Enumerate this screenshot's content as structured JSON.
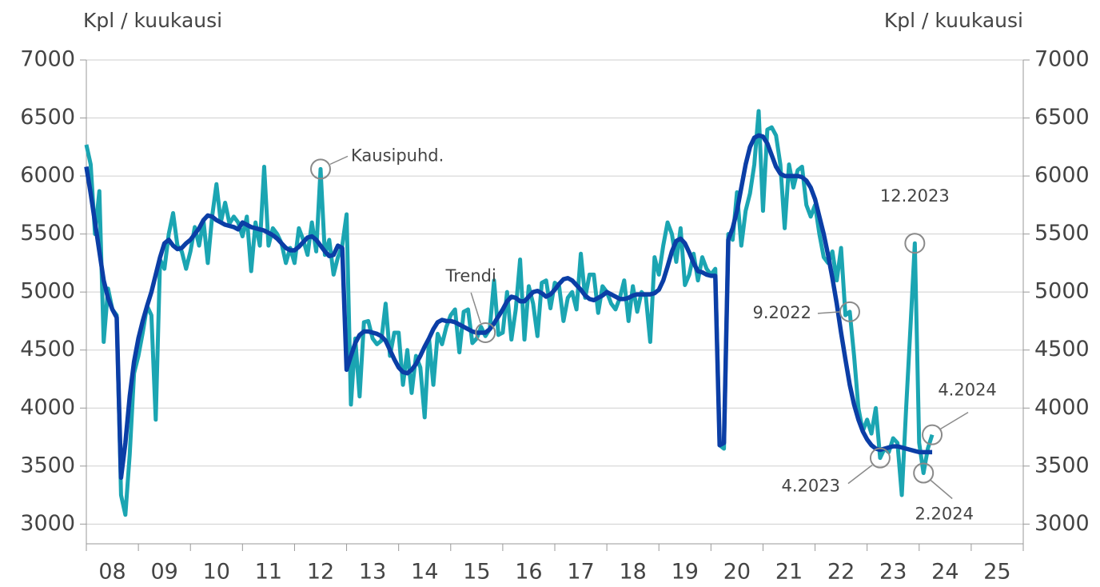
{
  "chart_data": {
    "type": "line",
    "ylabel": "Kpl / kuukausi",
    "y2label": "Kpl / kuukausi",
    "x": [
      0,
      1,
      2,
      3,
      4,
      5,
      6,
      7,
      8,
      9,
      10,
      11,
      12,
      13,
      14,
      15,
      16,
      17,
      18,
      19,
      20,
      21,
      22,
      23,
      24,
      25,
      26,
      27,
      28,
      29,
      30,
      31,
      32,
      33,
      34,
      35,
      36,
      37,
      38,
      39,
      40,
      41,
      42,
      43,
      44,
      45,
      46,
      47,
      48,
      49,
      50,
      51,
      52,
      53,
      54,
      55,
      56,
      57,
      58,
      59,
      60,
      61,
      62,
      63,
      64,
      65,
      66,
      67,
      68,
      69,
      70,
      71,
      72,
      73,
      74,
      75,
      76,
      77,
      78,
      79,
      80,
      81,
      82,
      83,
      84,
      85,
      86,
      87,
      88,
      89,
      90,
      91,
      92,
      93,
      94,
      95,
      96,
      97,
      98,
      99,
      100,
      101,
      102,
      103,
      104,
      105,
      106,
      107,
      108,
      109,
      110,
      111,
      112,
      113,
      114,
      115,
      116,
      117,
      118,
      119,
      120,
      121,
      122,
      123,
      124,
      125,
      126,
      127,
      128,
      129,
      130,
      131,
      132,
      133,
      134,
      135,
      136,
      137,
      138,
      139,
      140,
      141,
      142,
      143,
      144,
      145,
      146,
      147,
      148,
      149,
      150,
      151,
      152,
      153,
      154,
      155,
      156,
      157,
      158,
      159,
      160,
      161,
      162,
      163,
      164,
      165,
      166,
      167,
      168,
      169,
      170,
      171,
      172,
      173,
      174,
      175,
      176,
      177,
      178,
      179,
      180,
      181,
      182,
      183,
      184,
      185,
      186,
      187,
      188,
      189,
      190,
      191,
      192,
      193,
      194,
      195
    ],
    "series": [
      {
        "name": "Kausipuhd.",
        "color": "#1ba5b2",
        "values": [
          6270,
          6100,
          5500,
          5870,
          4570,
          5030,
          4850,
          4800,
          3250,
          3080,
          3600,
          4300,
          4450,
          4650,
          4880,
          4800,
          3900,
          5280,
          5200,
          5500,
          5680,
          5400,
          5350,
          5200,
          5350,
          5560,
          5400,
          5620,
          5250,
          5650,
          5930,
          5600,
          5770,
          5590,
          5650,
          5600,
          5480,
          5650,
          5180,
          5600,
          5400,
          6080,
          5400,
          5550,
          5500,
          5420,
          5250,
          5380,
          5250,
          5550,
          5450,
          5320,
          5600,
          5350,
          6060,
          5320,
          5450,
          5150,
          5300,
          5400,
          5670,
          4030,
          4600,
          4100,
          4740,
          4750,
          4600,
          4550,
          4580,
          4900,
          4450,
          4650,
          4650,
          4200,
          4500,
          4130,
          4450,
          4350,
          3920,
          4600,
          4200,
          4640,
          4550,
          4700,
          4800,
          4850,
          4480,
          4830,
          4850,
          4560,
          4600,
          4700,
          4620,
          4680,
          5100,
          4630,
          4650,
          5000,
          4590,
          4850,
          5280,
          4590,
          5050,
          4900,
          4620,
          5080,
          5100,
          4860,
          5080,
          5050,
          4750,
          4950,
          5000,
          4850,
          5330,
          4950,
          5150,
          5150,
          4820,
          5050,
          5000,
          4900,
          4850,
          4950,
          5100,
          4750,
          5050,
          4830,
          5000,
          4960,
          4570,
          5300,
          5150,
          5400,
          5600,
          5500,
          5260,
          5550,
          5060,
          5150,
          5330,
          5100,
          5300,
          5200,
          5150,
          5200,
          3680,
          3650,
          5500,
          5450,
          5860,
          5400,
          5700,
          5850,
          6100,
          6560,
          5700,
          6400,
          6420,
          6350,
          6100,
          5550,
          6100,
          5900,
          6050,
          6080,
          5750,
          5650,
          5750,
          5500,
          5300,
          5250,
          5350,
          5100,
          5380,
          4800,
          4830,
          4450,
          4000,
          3800,
          3900,
          3780,
          4000,
          3570,
          3650,
          3620,
          3740,
          3700,
          3250,
          4000,
          4700,
          5420,
          3700,
          3440,
          3650,
          3770
        ]
      },
      {
        "name": "Trendi",
        "color": "#0b3ea6",
        "values": [
          6080,
          5850,
          5600,
          5350,
          5100,
          4950,
          4850,
          4780,
          3400,
          3700,
          4100,
          4400,
          4600,
          4750,
          4880,
          5000,
          5150,
          5300,
          5420,
          5450,
          5400,
          5370,
          5380,
          5420,
          5450,
          5500,
          5550,
          5620,
          5660,
          5650,
          5620,
          5600,
          5580,
          5570,
          5560,
          5540,
          5600,
          5580,
          5560,
          5550,
          5540,
          5530,
          5510,
          5490,
          5460,
          5420,
          5380,
          5360,
          5360,
          5390,
          5430,
          5470,
          5480,
          5450,
          5400,
          5350,
          5310,
          5320,
          5400,
          5380,
          4330,
          4450,
          4560,
          4630,
          4660,
          4660,
          4650,
          4640,
          4620,
          4580,
          4500,
          4420,
          4350,
          4310,
          4300,
          4330,
          4380,
          4450,
          4530,
          4600,
          4680,
          4740,
          4760,
          4750,
          4750,
          4740,
          4720,
          4700,
          4680,
          4660,
          4650,
          4650,
          4650,
          4680,
          4730,
          4790,
          4850,
          4920,
          4960,
          4950,
          4920,
          4920,
          4960,
          5000,
          5010,
          4990,
          4960,
          4980,
          5020,
          5070,
          5110,
          5120,
          5100,
          5060,
          5020,
          4970,
          4940,
          4930,
          4950,
          4970,
          5000,
          4980,
          4960,
          4940,
          4940,
          4950,
          4970,
          4980,
          4980,
          4980,
          4980,
          4990,
          5020,
          5100,
          5220,
          5350,
          5440,
          5460,
          5420,
          5340,
          5250,
          5180,
          5170,
          5150,
          5140,
          5140,
          3680,
          3700,
          5450,
          5550,
          5700,
          5900,
          6100,
          6250,
          6330,
          6350,
          6340,
          6280,
          6180,
          6080,
          6020,
          6000,
          6000,
          6000,
          6000,
          5990,
          5960,
          5900,
          5800,
          5650,
          5500,
          5320,
          5120,
          4900,
          4650,
          4420,
          4200,
          4030,
          3900,
          3800,
          3730,
          3680,
          3650,
          3640,
          3650,
          3660,
          3670,
          3670,
          3660,
          3650,
          3640,
          3630,
          3620,
          3620,
          3620,
          3620
        ]
      }
    ],
    "xlim": [
      0,
      216
    ],
    "xticks": [
      {
        "value": 6,
        "label": "08"
      },
      {
        "value": 18,
        "label": "09"
      },
      {
        "value": 30,
        "label": "10"
      },
      {
        "value": 42,
        "label": "11"
      },
      {
        "value": 54,
        "label": "12"
      },
      {
        "value": 66,
        "label": "13"
      },
      {
        "value": 78,
        "label": "14"
      },
      {
        "value": 90,
        "label": "15"
      },
      {
        "value": 102,
        "label": "16"
      },
      {
        "value": 114,
        "label": "17"
      },
      {
        "value": 126,
        "label": "18"
      },
      {
        "value": 138,
        "label": "19"
      },
      {
        "value": 150,
        "label": "20"
      },
      {
        "value": 162,
        "label": "21"
      },
      {
        "value": 174,
        "label": "22"
      },
      {
        "value": 186,
        "label": "23"
      },
      {
        "value": 198,
        "label": "24"
      },
      {
        "value": 210,
        "label": "25"
      }
    ],
    "xtick_marks": [
      0,
      12,
      24,
      36,
      48,
      60,
      72,
      84,
      96,
      108,
      120,
      132,
      144,
      156,
      168,
      180,
      192,
      204,
      216
    ],
    "ylim": [
      2830,
      7000
    ],
    "yticks": [
      3000,
      3500,
      4000,
      4500,
      5000,
      5500,
      6000,
      6500,
      7000
    ],
    "y2lim": [
      2830,
      7000
    ],
    "y2ticks": [
      3000,
      3500,
      4000,
      4500,
      5000,
      5500,
      6000,
      6500,
      7000
    ],
    "grid": true,
    "annotations": [
      {
        "text": "Kausipuhd.",
        "x": 54,
        "y": 6060
      },
      {
        "text": "Trendi",
        "x": 92,
        "y": 4650
      },
      {
        "text": "9.2022",
        "x": 176,
        "y": 4830
      },
      {
        "text": "12.2023",
        "x": 191,
        "y": 5420
      },
      {
        "text": "4.2023",
        "x": 183,
        "y": 3570
      },
      {
        "text": "4.2024",
        "x": 195,
        "y": 3770
      },
      {
        "text": "2.2024",
        "x": 193,
        "y": 3440
      }
    ]
  }
}
